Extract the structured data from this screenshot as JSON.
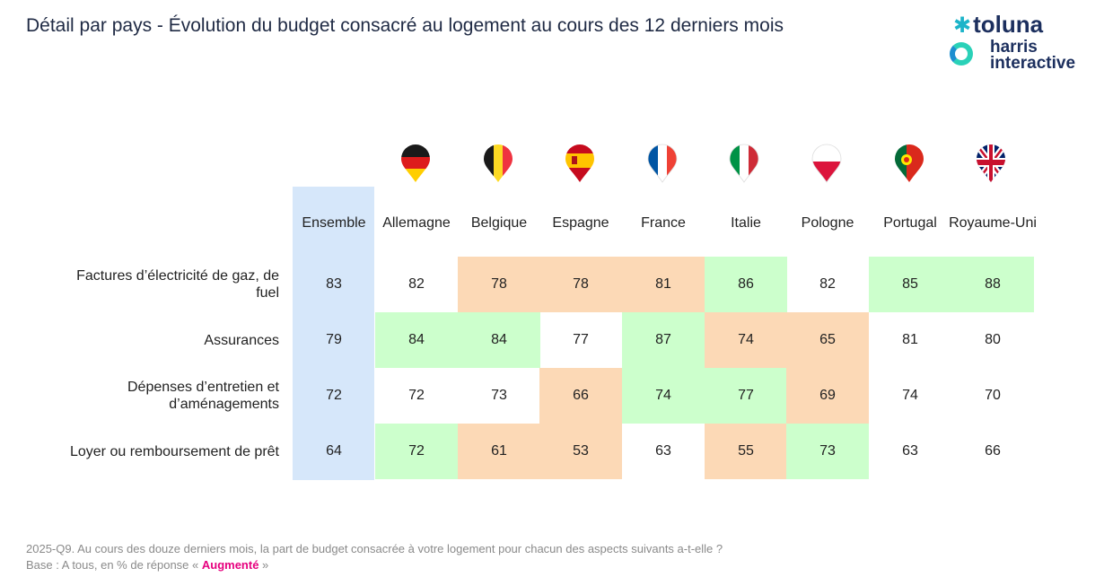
{
  "title": "Détail par pays - Évolution du budget consacré au logement au cours des 12 derniers mois",
  "logo": {
    "brand": "toluna",
    "sub_line1": "harris",
    "sub_line2": "interactive"
  },
  "chart_data": {
    "type": "table",
    "columns": [
      "Ensemble",
      "Allemagne",
      "Belgique",
      "Espagne",
      "France",
      "Italie",
      "Pologne",
      "Portugal",
      "Royaume-Uni"
    ],
    "column_header_lines": [
      [
        "Ensemble"
      ],
      [
        "Allemagne"
      ],
      [
        "Belgique"
      ],
      [
        "Espagne"
      ],
      [
        "France"
      ],
      [
        "Italie"
      ],
      [
        "Pologne"
      ],
      [
        "Portugal"
      ],
      [
        "Royaume-",
        "Uni"
      ]
    ],
    "rows": [
      {
        "label_lines": [
          "Factures d’électricité de gaz, de",
          "fuel"
        ],
        "values": [
          83,
          82,
          78,
          78,
          81,
          86,
          82,
          85,
          88
        ],
        "highlight": [
          "base",
          "none",
          "low",
          "low",
          "low",
          "high",
          "none",
          "high",
          "high"
        ]
      },
      {
        "label_lines": [
          "Assurances"
        ],
        "values": [
          79,
          84,
          84,
          77,
          87,
          74,
          65,
          81,
          80
        ],
        "highlight": [
          "base",
          "high",
          "high",
          "none",
          "high",
          "low",
          "low",
          "none",
          "none"
        ]
      },
      {
        "label_lines": [
          "Dépenses d’entretien et",
          "d’aménagements"
        ],
        "values": [
          72,
          72,
          73,
          66,
          74,
          77,
          69,
          74,
          70
        ],
        "highlight": [
          "base",
          "none",
          "none",
          "low",
          "high",
          "high",
          "low",
          "none",
          "none"
        ]
      },
      {
        "label_lines": [
          "Loyer ou remboursement de prêt"
        ],
        "values": [
          64,
          72,
          61,
          53,
          63,
          55,
          73,
          63,
          66
        ],
        "highlight": [
          "base",
          "high",
          "low",
          "low",
          "none",
          "low",
          "high",
          "none",
          "none"
        ]
      }
    ],
    "colors": {
      "high": "#ccffcc",
      "low": "#fcd9b6",
      "base": "#d6e7fa",
      "none": "#ffffff"
    }
  },
  "footnote": {
    "line1": "2025-Q9. Au cours des douze derniers mois, la part de budget consacrée à votre logement pour chacun des aspects suivants a-t-elle ?",
    "line2_prefix": "Base : A tous, en % de réponse « ",
    "line2_highlight": "Augmenté",
    "line2_suffix": " »"
  }
}
